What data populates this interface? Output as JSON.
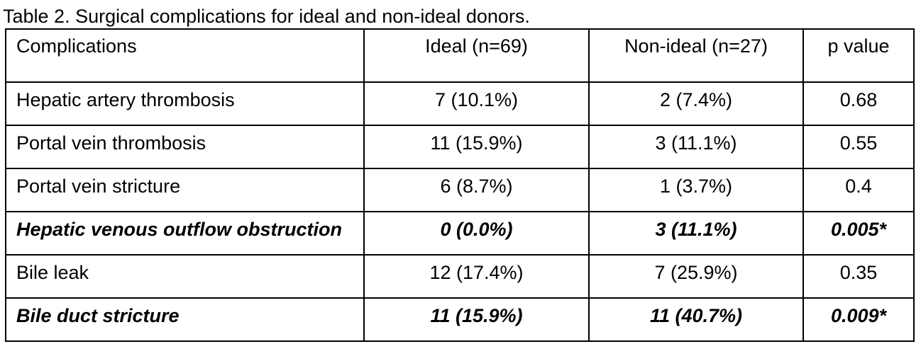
{
  "caption": "Table 2. Surgical complications for ideal and non-ideal donors.",
  "table": {
    "headers": [
      "Complications",
      "Ideal (n=69)",
      "Non-ideal (n=27)",
      "p value"
    ],
    "rows": [
      {
        "cells": [
          "Hepatic artery thrombosis",
          "7 (10.1%)",
          "2 (7.4%)",
          "0.68"
        ],
        "significant": false
      },
      {
        "cells": [
          "Portal vein thrombosis",
          "11 (15.9%)",
          "3 (11.1%)",
          "0.55"
        ],
        "significant": false
      },
      {
        "cells": [
          "Portal vein stricture",
          "6 (8.7%)",
          "1 (3.7%)",
          "0.4"
        ],
        "significant": false
      },
      {
        "cells": [
          "Hepatic venous outflow obstruction",
          "0 (0.0%)",
          "3 (11.1%)",
          "0.005*"
        ],
        "significant": true
      },
      {
        "cells": [
          "Bile leak",
          "12 (17.4%)",
          "7 (25.9%)",
          "0.35"
        ],
        "significant": false
      },
      {
        "cells": [
          "Bile duct stricture",
          "11 (15.9%)",
          "11 (40.7%)",
          "0.009*"
        ],
        "significant": true
      }
    ]
  }
}
